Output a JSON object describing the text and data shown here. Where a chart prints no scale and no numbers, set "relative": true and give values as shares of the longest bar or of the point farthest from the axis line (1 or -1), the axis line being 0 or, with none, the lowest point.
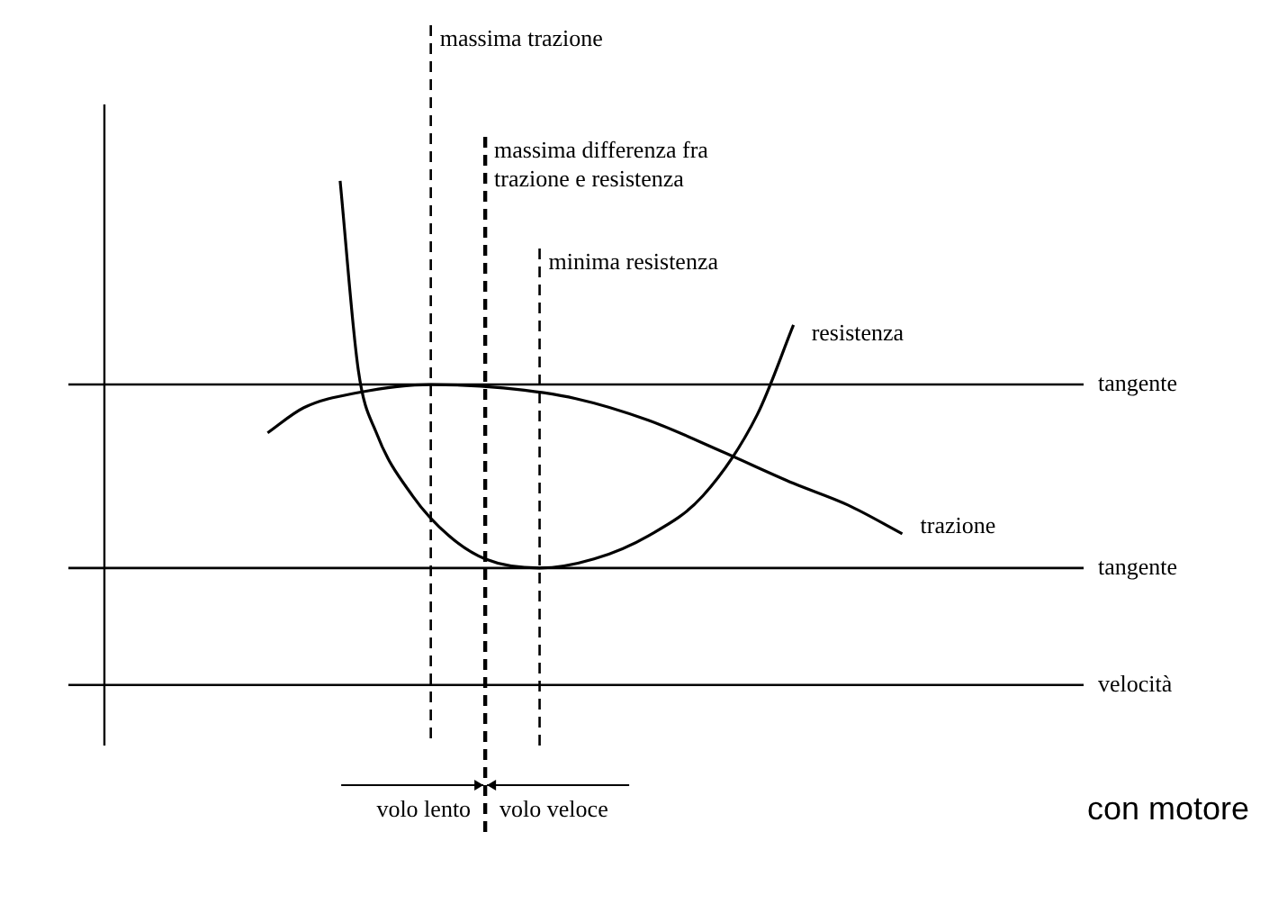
{
  "chart_data": {
    "type": "line",
    "relative": true,
    "xlabel": "velocità",
    "categories": [
      null,
      null,
      null,
      null,
      null,
      null,
      null,
      null,
      null,
      null,
      null,
      null,
      null,
      null,
      null,
      null,
      null,
      null,
      null,
      null,
      null,
      null,
      null,
      null,
      null,
      null,
      null,
      null,
      null,
      null,
      null,
      null,
      null,
      null,
      null,
      null,
      null,
      null,
      null,
      null,
      null,
      null,
      null,
      null,
      null,
      null,
      null,
      null,
      null,
      null,
      null,
      null,
      null,
      null,
      null
    ],
    "series": [
      {
        "name": "resistenza",
        "color": "#000000",
        "values": [
          null,
          null,
          null,
          null,
          null,
          null,
          null,
          null,
          null,
          null,
          null,
          null,
          null,
          1.0,
          0.625,
          0.5,
          null,
          0.375,
          null,
          0.296,
          null,
          0.25,
          null,
          null,
          0.232,
          null,
          null,
          0.25,
          null,
          null,
          0.296,
          null,
          null,
          0.375,
          null,
          null,
          0.536,
          null,
          0.714,
          null,
          null,
          null,
          null,
          null,
          null,
          null,
          null,
          null,
          null,
          null,
          null,
          null,
          null,
          null,
          null
        ]
      },
      {
        "name": "trazione",
        "color": "#000000",
        "values": [
          null,
          null,
          null,
          null,
          null,
          null,
          null,
          null,
          null,
          0.5,
          null,
          0.55,
          null,
          null,
          0.58,
          null,
          null,
          null,
          0.596,
          null,
          null,
          null,
          0.589,
          null,
          null,
          null,
          0.568,
          null,
          null,
          null,
          0.525,
          null,
          null,
          null,
          0.464,
          null,
          null,
          null,
          0.4,
          null,
          null,
          0.357,
          null,
          null,
          0.3,
          null,
          null,
          null,
          null,
          null,
          null,
          null,
          null,
          null,
          null
        ]
      }
    ],
    "ref_lines": [
      {
        "axis": "y",
        "value": 0.596,
        "label": "tangente",
        "line_style": "solid"
      },
      {
        "axis": "y",
        "value": 0.232,
        "label": "tangente",
        "line_style": "solid"
      }
    ],
    "annotations": [
      "massima trazione",
      "massima differenza fra\ntrazione e resistenza",
      "minima resistenza",
      "volo lento",
      "volo veloce",
      "con motore"
    ],
    "legend": false,
    "marker": "none",
    "line_style": "solid"
  }
}
